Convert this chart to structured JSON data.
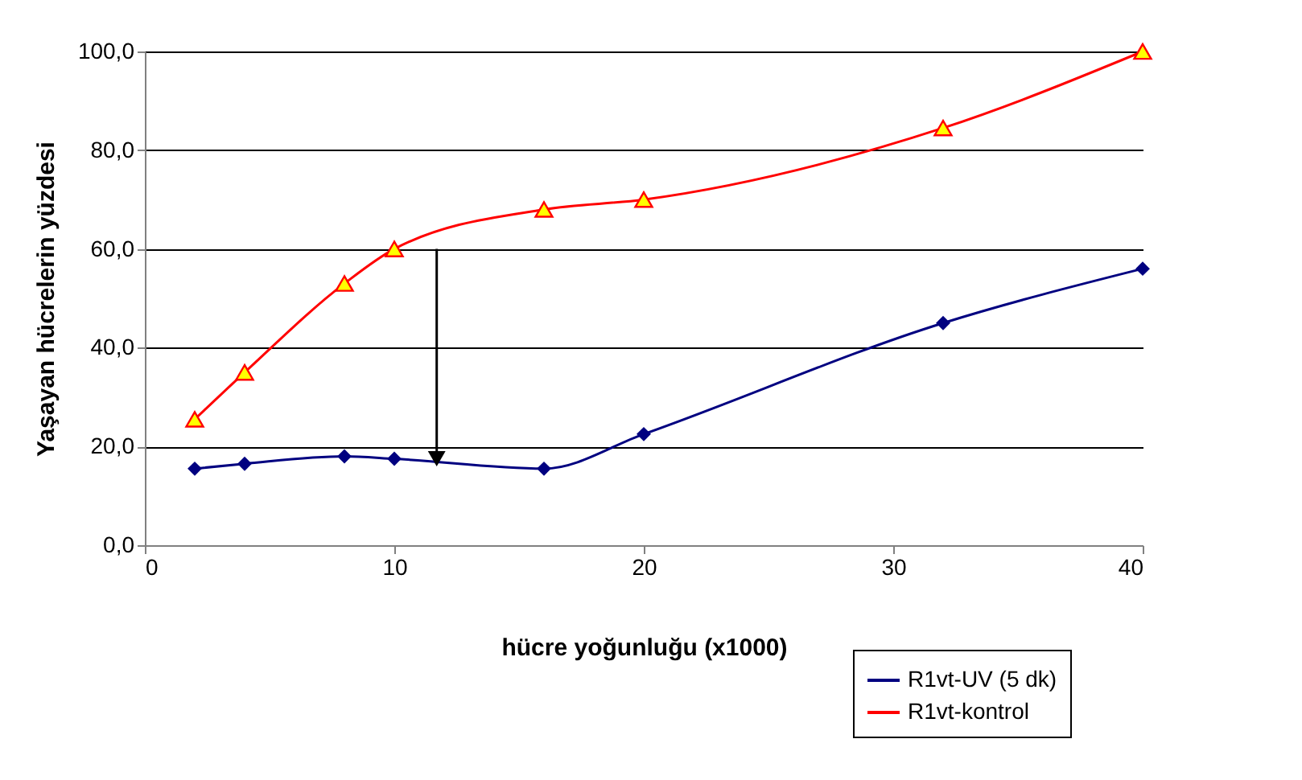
{
  "chart_data": {
    "type": "line",
    "xlabel": "hücre yoğunluğu (x1000)",
    "ylabel": "Yaşayan hücrelerin yüzdesi",
    "x": [
      2,
      4,
      8,
      10,
      16,
      20,
      32,
      40
    ],
    "series": [
      {
        "name": "R1vt-UV (5 dk)",
        "color": "#000080",
        "marker": "diamond",
        "values": [
          15.5,
          16.5,
          18,
          17.5,
          15.5,
          22.5,
          45,
          56
        ]
      },
      {
        "name": "R1vt-kontrol",
        "color": "#ff0000",
        "marker": "triangle",
        "values": [
          25.5,
          35,
          53,
          60,
          68,
          70,
          84.5,
          100
        ]
      }
    ],
    "xlim": [
      0,
      40
    ],
    "xticks": [
      0,
      10,
      20,
      30,
      40
    ],
    "ylim": [
      0,
      100
    ],
    "yticks": [
      {
        "value": 0,
        "label": "0,0"
      },
      {
        "value": 20,
        "label": "20,0"
      },
      {
        "value": 40,
        "label": "40,0"
      },
      {
        "value": 60,
        "label": "60,0"
      },
      {
        "value": 80,
        "label": "80,0"
      },
      {
        "value": 100,
        "label": "100,0"
      }
    ],
    "grid": "y",
    "legend": "bottom right",
    "line_style": "solid"
  }
}
